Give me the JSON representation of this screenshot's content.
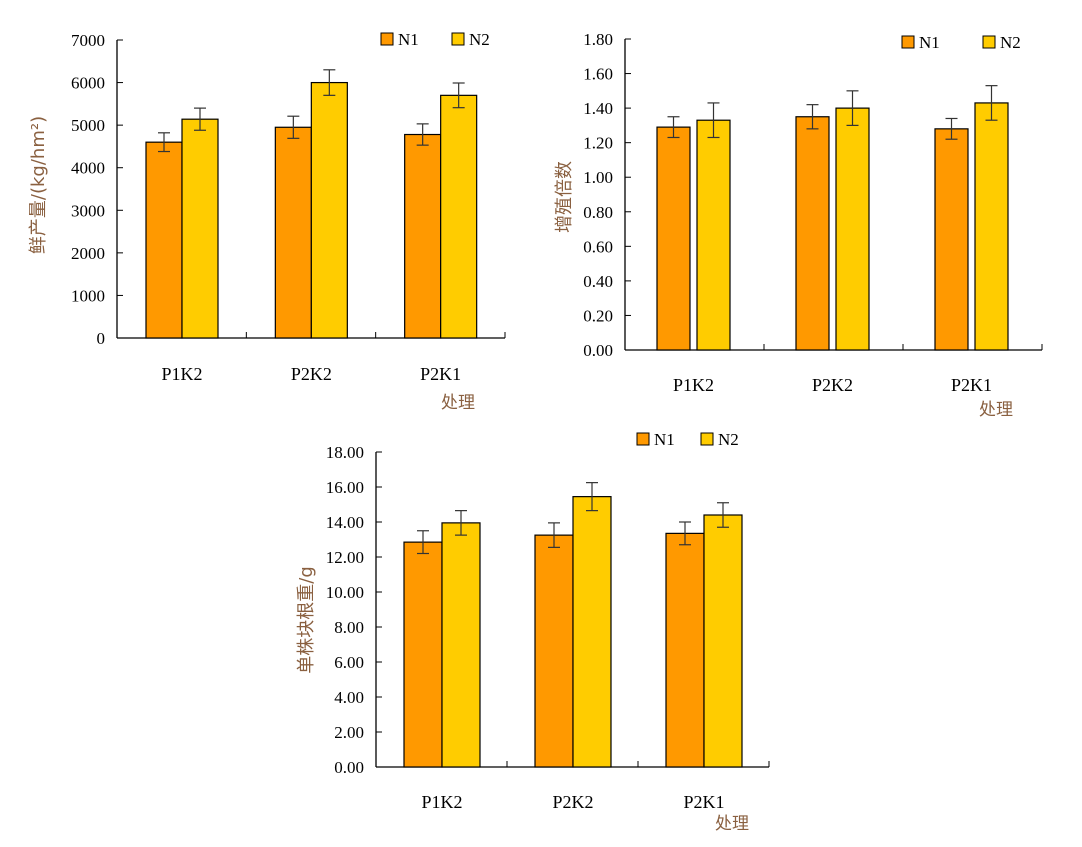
{
  "colors": {
    "N1": "#FF9900",
    "N2": "#FFCC00"
  },
  "chart_data": [
    {
      "type": "bar",
      "ylabel": "鲜产量/(kg/hm²)",
      "xlabel": "处理",
      "categories": [
        "P1K2",
        "P2K2",
        "P2K1"
      ],
      "ylim": [
        0,
        7000
      ],
      "yticks": [
        "0",
        "1000",
        "2000",
        "3000",
        "4000",
        "5000",
        "6000",
        "7000"
      ],
      "legend": "top-right",
      "series": [
        {
          "name": "N1",
          "values": [
            4600,
            4950,
            4780
          ],
          "errors": [
            220,
            260,
            250
          ]
        },
        {
          "name": "N2",
          "values": [
            5140,
            6000,
            5700
          ],
          "errors": [
            260,
            300,
            290
          ]
        }
      ]
    },
    {
      "type": "bar",
      "ylabel": "增殖倍数",
      "xlabel": "处理",
      "categories": [
        "P1K2",
        "P2K2",
        "P2K1"
      ],
      "ylim": [
        0,
        1.8
      ],
      "yticks": [
        "0.00",
        "0.20",
        "0.40",
        "0.60",
        "0.80",
        "1.00",
        "1.20",
        "1.40",
        "1.60",
        "1.80"
      ],
      "legend": "top-right",
      "series": [
        {
          "name": "N1",
          "values": [
            1.29,
            1.35,
            1.28
          ],
          "errors": [
            0.06,
            0.07,
            0.06
          ]
        },
        {
          "name": "N2",
          "values": [
            1.33,
            1.4,
            1.43
          ],
          "errors": [
            0.1,
            0.1,
            0.1
          ]
        }
      ]
    },
    {
      "type": "bar",
      "ylabel": "单株块根重/g",
      "xlabel": "处理",
      "categories": [
        "P1K2",
        "P2K2",
        "P2K1"
      ],
      "ylim": [
        0,
        18
      ],
      "yticks": [
        "0.00",
        "2.00",
        "4.00",
        "6.00",
        "8.00",
        "10.00",
        "12.00",
        "14.00",
        "16.00",
        "18.00"
      ],
      "legend": "top-right",
      "series": [
        {
          "name": "N1",
          "values": [
            12.85,
            13.25,
            13.35
          ],
          "errors": [
            0.65,
            0.7,
            0.65
          ]
        },
        {
          "name": "N2",
          "values": [
            13.95,
            15.45,
            14.4
          ],
          "errors": [
            0.7,
            0.8,
            0.7
          ]
        }
      ]
    }
  ]
}
